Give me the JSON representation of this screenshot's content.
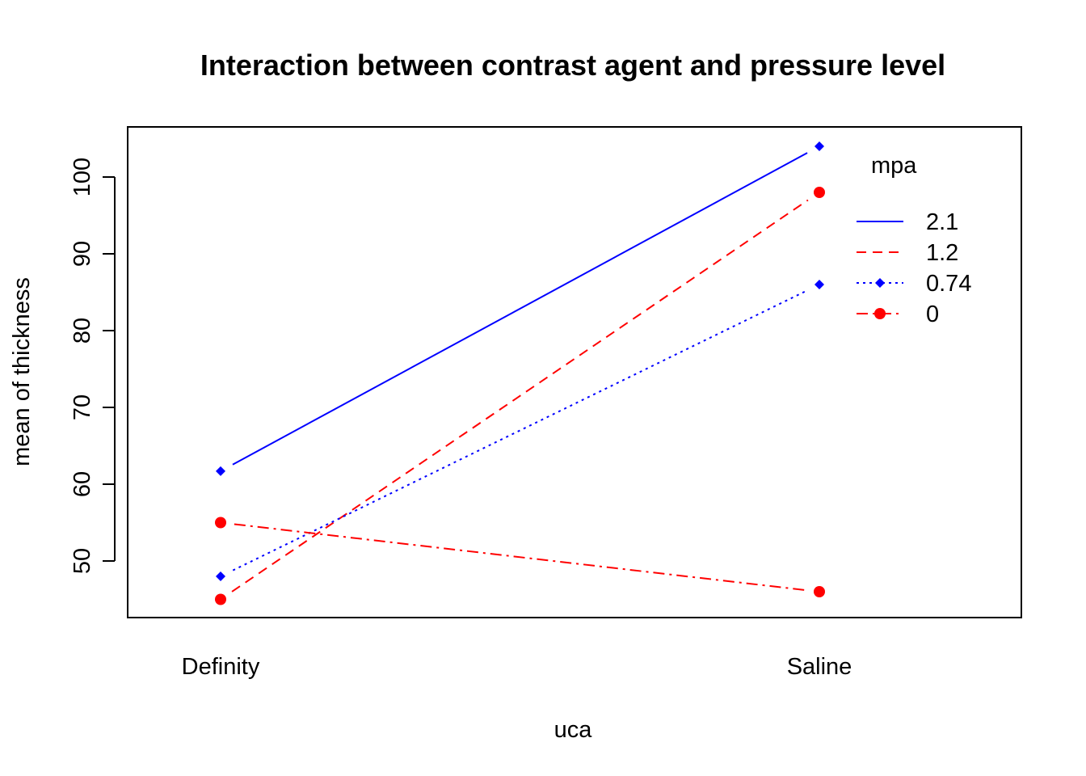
{
  "chart_data": {
    "type": "line",
    "title": "Interaction between contrast agent and pressure level",
    "xlabel": "uca",
    "ylabel": "mean of  thickness",
    "categories": [
      "Definity",
      "Saline"
    ],
    "yticks": [
      50,
      60,
      70,
      80,
      90,
      100
    ],
    "ylim": [
      42.5,
      106.5
    ],
    "grid": false,
    "legend": {
      "title": "mpa",
      "placement": "top-right",
      "entries": [
        "2.1",
        "1.2",
        "0.74",
        "0"
      ]
    },
    "series": [
      {
        "name": "2.1",
        "values": [
          61.7,
          104.0
        ],
        "color": "#0000ff",
        "line": "solid",
        "marker": "diamond"
      },
      {
        "name": "1.2",
        "values": [
          45.0,
          98.0
        ],
        "color": "#ff0000",
        "line": "dashed",
        "marker": "circle"
      },
      {
        "name": "0.74",
        "values": [
          48.0,
          86.0
        ],
        "color": "#0000ff",
        "line": "dotted",
        "marker": "diamond"
      },
      {
        "name": "0",
        "values": [
          55.0,
          46.0
        ],
        "color": "#ff0000",
        "line": "dashdot",
        "marker": "circle"
      }
    ]
  }
}
